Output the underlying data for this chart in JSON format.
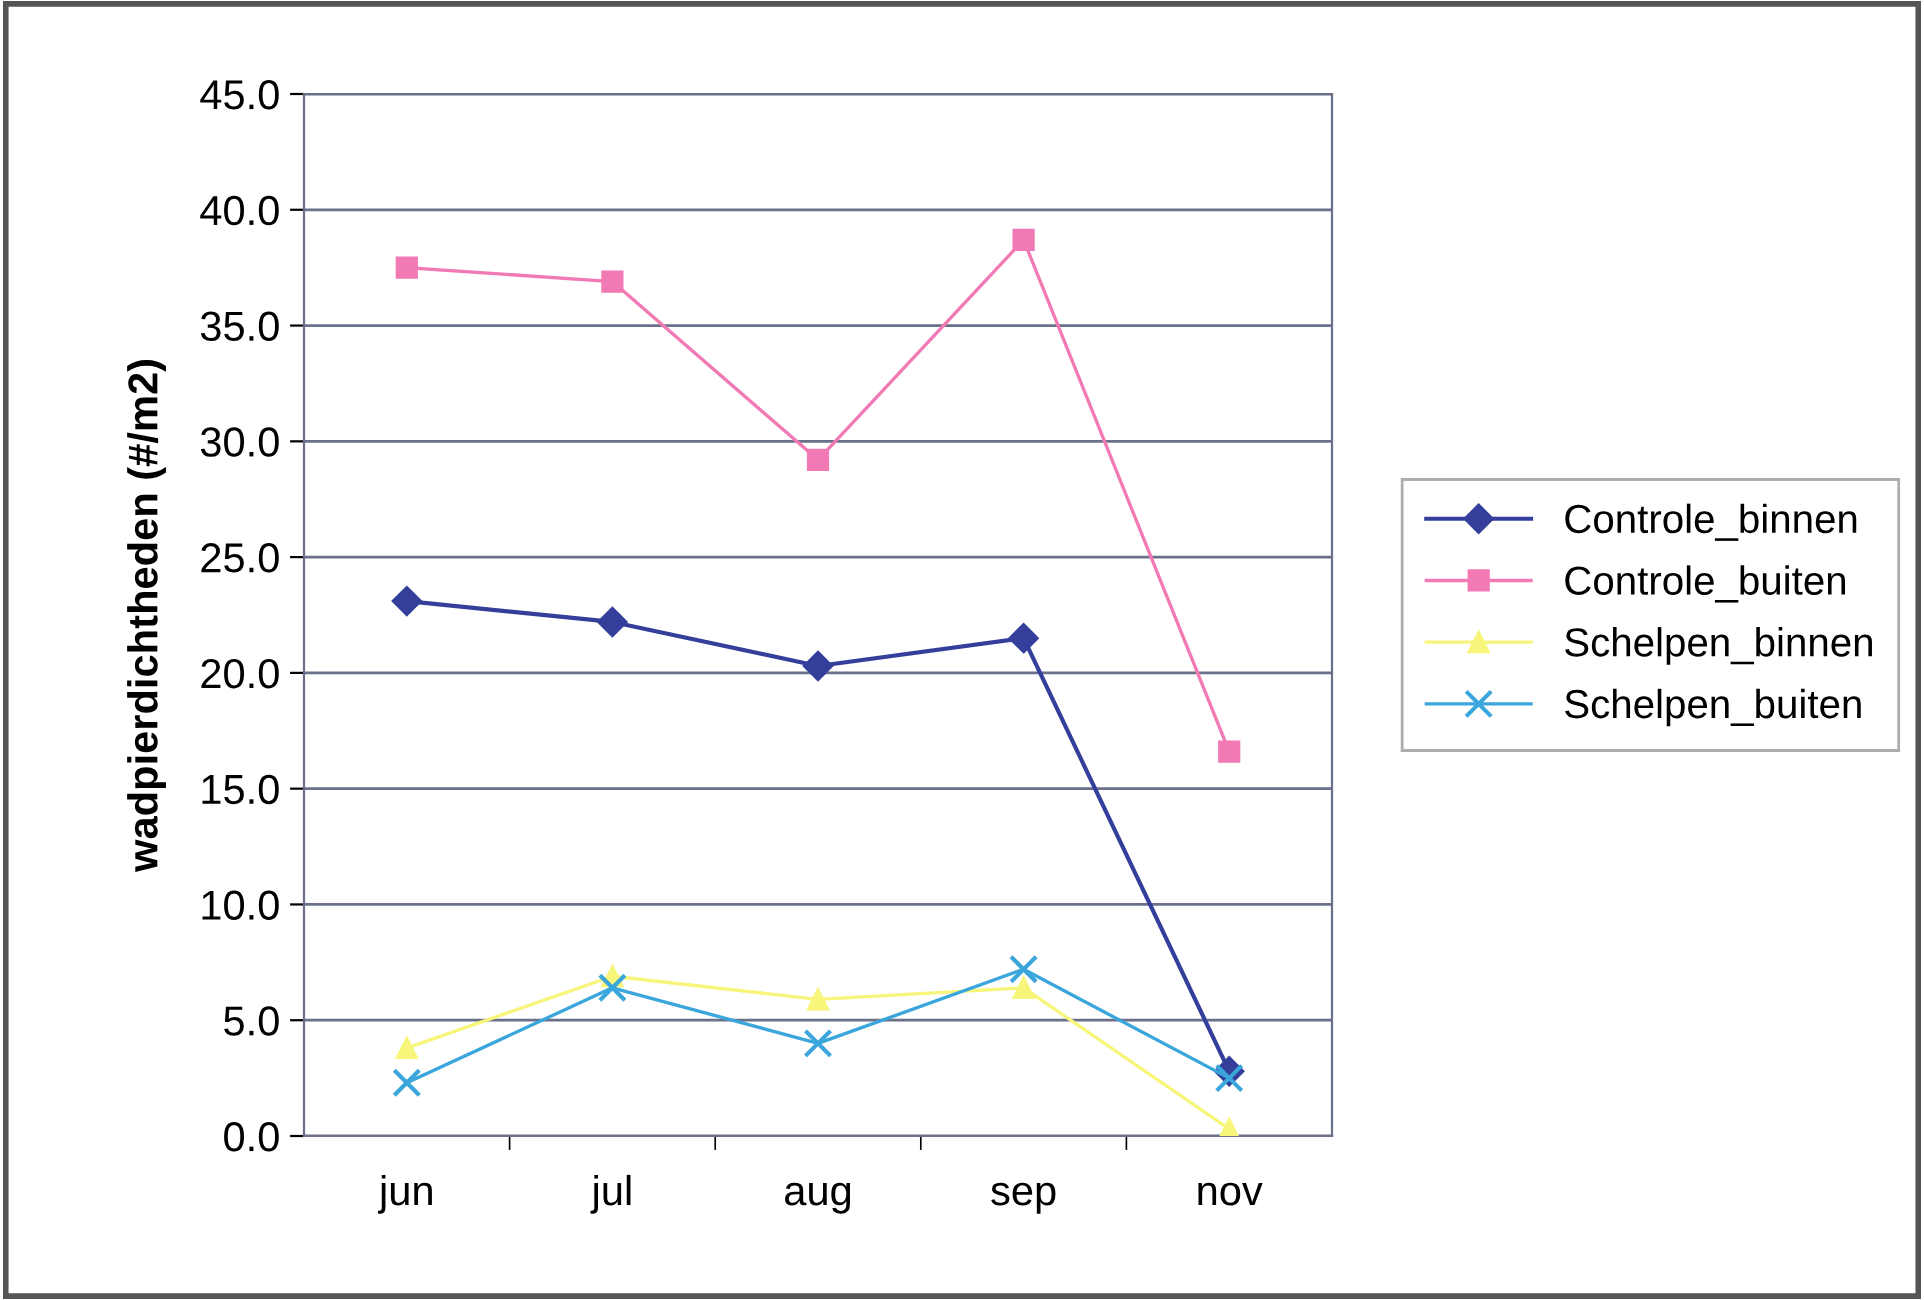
{
  "chart_data": {
    "type": "line",
    "ylabel": "wadpierdichtheden (#/m2)",
    "categories": [
      "jun",
      "jul",
      "aug",
      "sep",
      "nov"
    ],
    "series": [
      {
        "name": "Controle_binnen",
        "color": "#333f9a",
        "values": [
          23.1,
          22.2,
          20.3,
          21.5,
          2.8
        ],
        "marker": "diamond"
      },
      {
        "name": "Controle_buiten",
        "color": "#f27ab4",
        "values": [
          37.5,
          36.9,
          29.2,
          38.7,
          16.6
        ],
        "marker": "square"
      },
      {
        "name": "Schelpen_binnen",
        "color": "#f7f57a",
        "values": [
          3.8,
          6.9,
          5.9,
          6.4,
          0.3
        ],
        "marker": "triangle"
      },
      {
        "name": "Schelpen_buiten",
        "color": "#3aa6dc",
        "values": [
          2.3,
          6.4,
          4.0,
          7.2,
          2.5
        ],
        "marker": "cross"
      }
    ],
    "ylim": [
      0,
      45
    ],
    "yticks": [
      {
        "value": 0,
        "label": "0.0"
      },
      {
        "value": 5,
        "label": "5.0"
      },
      {
        "value": 10,
        "label": "10.0"
      },
      {
        "value": 15,
        "label": "15.0"
      },
      {
        "value": 20,
        "label": "20.0"
      },
      {
        "value": 25,
        "label": "25.0"
      },
      {
        "value": 30,
        "label": "30.0"
      },
      {
        "value": 35,
        "label": "35.0"
      },
      {
        "value": 40,
        "label": "40.0"
      },
      {
        "value": 45,
        "label": "45.0"
      }
    ],
    "grid": "y",
    "legend": "right",
    "line_style": "solid"
  }
}
